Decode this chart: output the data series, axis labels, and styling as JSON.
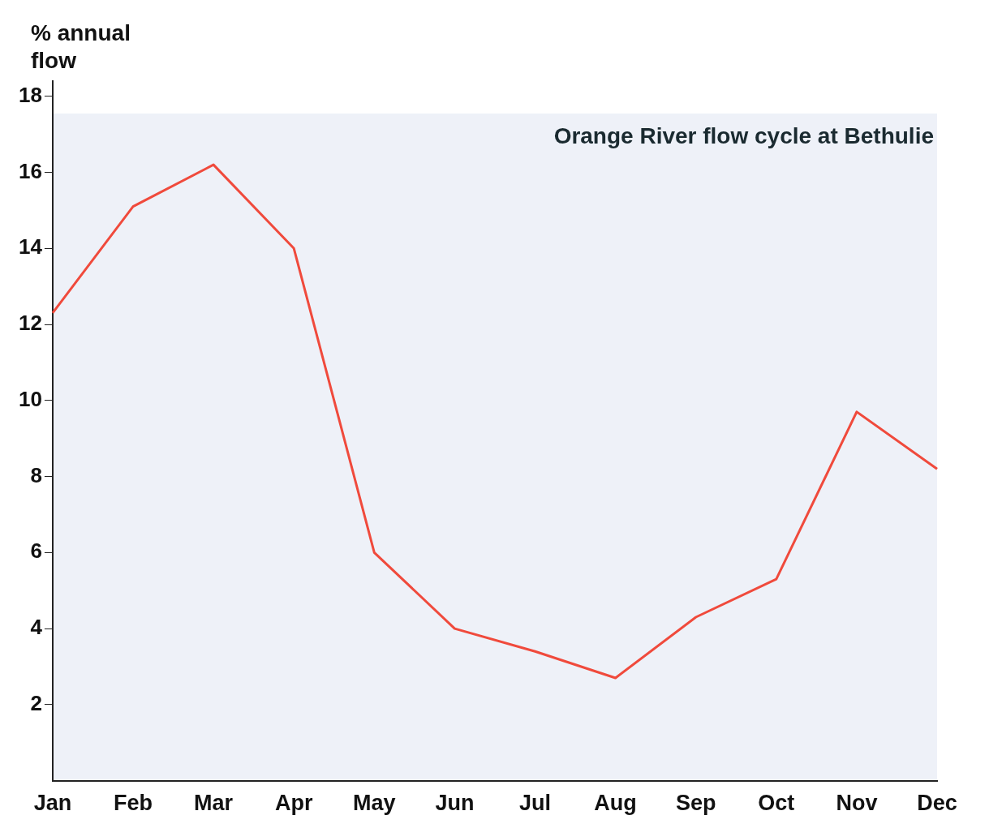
{
  "chart_data": {
    "type": "line",
    "title": "Orange River flow cycle at Bethulie",
    "ylabel": "% annual flow",
    "categories": [
      "Jan",
      "Feb",
      "Mar",
      "Apr",
      "May",
      "Jun",
      "Jul",
      "Aug",
      "Sep",
      "Oct",
      "Nov",
      "Dec"
    ],
    "series": [
      {
        "color": "#f04a3c",
        "values": [
          12.3,
          15.1,
          16.2,
          14.0,
          6.0,
          4.0,
          3.4,
          2.7,
          4.3,
          5.3,
          9.7,
          8.2
        ]
      }
    ],
    "ylim": [
      0,
      18.4
    ],
    "yticks": [
      2,
      4,
      6,
      8,
      10,
      12,
      14,
      16,
      18
    ],
    "grid": false,
    "legend": false,
    "marker": "none",
    "line_style": "solid"
  }
}
